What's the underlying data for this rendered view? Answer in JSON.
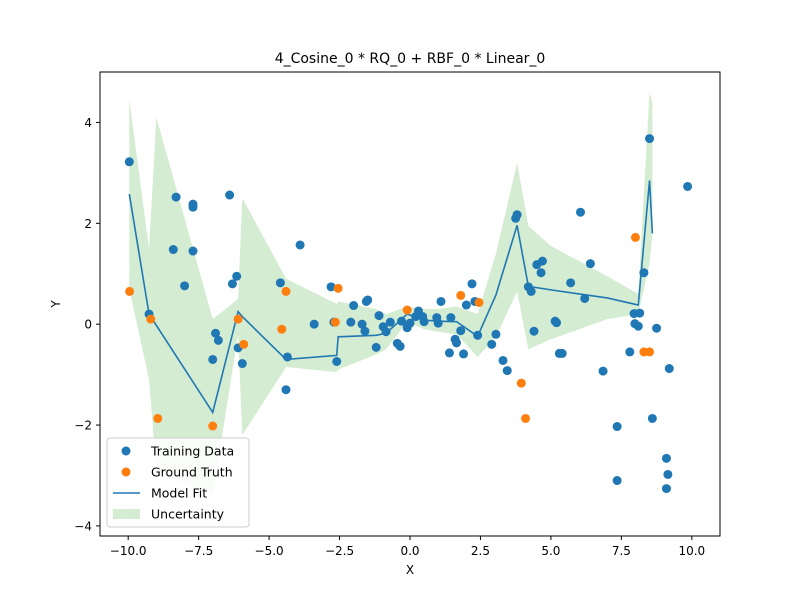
{
  "chart_data": {
    "type": "scatter",
    "title": "4_Cosine_0 * RQ_0 + RBF_0 * Linear_0",
    "xlabel": "X",
    "ylabel": "Y",
    "xlim": [
      -11,
      11
    ],
    "ylim": [
      -4.2,
      5.0
    ],
    "xticks": [
      -10.0,
      -7.5,
      -5.0,
      -2.5,
      0.0,
      2.5,
      5.0,
      7.5,
      10.0
    ],
    "xtick_labels": [
      "−10.0",
      "−7.5",
      "−5.0",
      "−2.5",
      "0.0",
      "2.5",
      "5.0",
      "7.5",
      "10.0"
    ],
    "yticks": [
      -4,
      -2,
      0,
      2,
      4
    ],
    "ytick_labels": [
      "−4",
      "−2",
      "0",
      "2",
      "4"
    ],
    "grid": false,
    "legend_position": "lower-left",
    "colors": {
      "training": "#1f77b4",
      "ground_truth": "#ff7f0e",
      "model_fit": "#1f77b4",
      "uncertainty": "#d4ecd1"
    },
    "series": [
      {
        "name": "Training Data",
        "kind": "scatter",
        "x": [
          -9.96,
          -9.26,
          -8.3,
          -8.4,
          -8.0,
          -7.7,
          -7.7,
          -7.7,
          -7.0,
          -6.9,
          -6.8,
          -6.4,
          -6.3,
          -6.15,
          -6.1,
          -5.95,
          -4.6,
          -4.4,
          -4.35,
          -3.9,
          -3.4,
          -2.8,
          -2.7,
          -2.6,
          -2.1,
          -2.0,
          -1.7,
          -1.6,
          -1.55,
          -1.5,
          -1.2,
          -1.1,
          -0.95,
          -0.85,
          -0.7,
          -0.45,
          -0.35,
          -0.3,
          -0.1,
          0.0,
          0.2,
          0.3,
          0.45,
          0.5,
          0.95,
          1.0,
          1.1,
          1.4,
          1.45,
          1.6,
          1.65,
          1.8,
          1.9,
          2.0,
          2.2,
          2.3,
          2.4,
          2.9,
          3.05,
          3.3,
          3.45,
          3.75,
          3.8,
          4.2,
          4.3,
          4.4,
          4.5,
          4.65,
          4.7,
          5.15,
          5.2,
          5.3,
          5.4,
          5.7,
          6.05,
          6.2,
          6.4,
          6.85,
          7.35,
          7.35,
          7.8,
          7.95,
          7.98,
          8.1,
          8.15,
          8.3,
          8.5,
          8.6,
          8.75,
          9.1,
          9.1,
          9.15,
          9.2,
          9.85
        ],
        "y": [
          3.22,
          0.2,
          2.52,
          1.48,
          0.76,
          2.38,
          2.32,
          1.45,
          -0.7,
          -0.18,
          -0.32,
          2.56,
          0.8,
          0.95,
          -0.47,
          -0.78,
          0.82,
          -1.3,
          -0.65,
          1.57,
          0.0,
          0.74,
          0.04,
          -0.74,
          0.04,
          0.37,
          0.0,
          -0.14,
          0.45,
          0.48,
          -0.46,
          0.17,
          -0.05,
          -0.15,
          0.04,
          -0.38,
          -0.44,
          0.06,
          -0.07,
          0.02,
          0.15,
          0.26,
          0.15,
          0.05,
          0.13,
          0.02,
          0.45,
          -0.57,
          0.13,
          -0.3,
          -0.37,
          -0.13,
          -0.59,
          0.38,
          0.8,
          0.45,
          -0.22,
          -0.4,
          -0.2,
          -0.72,
          -0.92,
          2.1,
          2.17,
          0.74,
          0.65,
          -0.14,
          1.18,
          1.02,
          1.25,
          0.06,
          0.03,
          -0.58,
          -0.58,
          0.82,
          2.22,
          0.51,
          1.2,
          -0.93,
          -2.03,
          -3.1,
          -0.55,
          0.21,
          0.01,
          -0.04,
          0.22,
          1.02,
          3.68,
          -1.87,
          -0.08,
          -2.66,
          -3.26,
          -2.98,
          -0.88,
          2.73
        ]
      },
      {
        "name": "Ground Truth",
        "kind": "scatter",
        "x": [
          -9.95,
          -9.2,
          -8.95,
          -7.0,
          -6.1,
          -5.9,
          -4.55,
          -4.4,
          -2.65,
          -2.55,
          -0.1,
          1.8,
          2.45,
          3.95,
          4.1,
          8.0,
          8.3,
          8.5
        ],
        "y": [
          0.65,
          0.1,
          -1.87,
          -2.02,
          0.1,
          -0.4,
          -0.1,
          0.65,
          0.04,
          0.71,
          0.28,
          0.57,
          0.43,
          -1.17,
          -1.87,
          1.72,
          -0.55,
          -0.55
        ]
      },
      {
        "name": "Model Fit",
        "kind": "line",
        "x": [
          -9.96,
          -9.26,
          -7.0,
          -6.1,
          -5.95,
          -4.4,
          -2.6,
          -2.55,
          -1.2,
          -0.85,
          -0.1,
          0.5,
          1.0,
          1.65,
          2.4,
          3.05,
          3.8,
          4.2,
          5.0,
          6.0,
          7.0,
          8.1,
          8.5,
          8.6
        ],
        "y": [
          2.58,
          0.2,
          -1.75,
          0.25,
          0.15,
          -0.7,
          -0.62,
          -0.25,
          -0.22,
          -0.18,
          0.2,
          0.08,
          0.06,
          0.05,
          -0.24,
          0.58,
          1.96,
          0.75,
          0.68,
          0.6,
          0.52,
          0.38,
          2.85,
          1.8
        ]
      },
      {
        "name": "Uncertainty",
        "kind": "area",
        "x": [
          -9.96,
          -9.26,
          -9.0,
          -7.0,
          -6.1,
          -5.95,
          -4.4,
          -2.6,
          -2.55,
          -1.2,
          -0.85,
          -0.1,
          0.5,
          1.0,
          1.65,
          2.4,
          3.05,
          3.8,
          4.2,
          5.0,
          6.0,
          7.0,
          8.1,
          8.5,
          8.6
        ],
        "upper": [
          4.45,
          1.5,
          4.1,
          0.1,
          0.5,
          2.5,
          0.9,
          0.4,
          0.45,
          0.3,
          0.2,
          0.35,
          0.3,
          0.3,
          0.35,
          0.2,
          1.4,
          3.2,
          1.95,
          1.55,
          1.25,
          0.95,
          0.6,
          4.6,
          4.4
        ],
        "lower": [
          0.7,
          -1.1,
          -2.9,
          -3.4,
          -0.2,
          -2.2,
          -0.85,
          -0.95,
          -0.9,
          -0.6,
          -0.5,
          0.05,
          -0.1,
          -0.15,
          -0.2,
          -0.65,
          -0.25,
          0.65,
          -0.5,
          -0.3,
          -0.1,
          0.1,
          0.2,
          1.2,
          1.8
        ]
      }
    ],
    "legend": [
      {
        "label": "Training Data",
        "marker": "circle",
        "color": "#1f77b4"
      },
      {
        "label": "Ground Truth",
        "marker": "circle",
        "color": "#ff7f0e"
      },
      {
        "label": "Model Fit",
        "marker": "line",
        "color": "#1f77b4"
      },
      {
        "label": "Uncertainty",
        "marker": "patch",
        "color": "#d4ecd1"
      }
    ]
  }
}
